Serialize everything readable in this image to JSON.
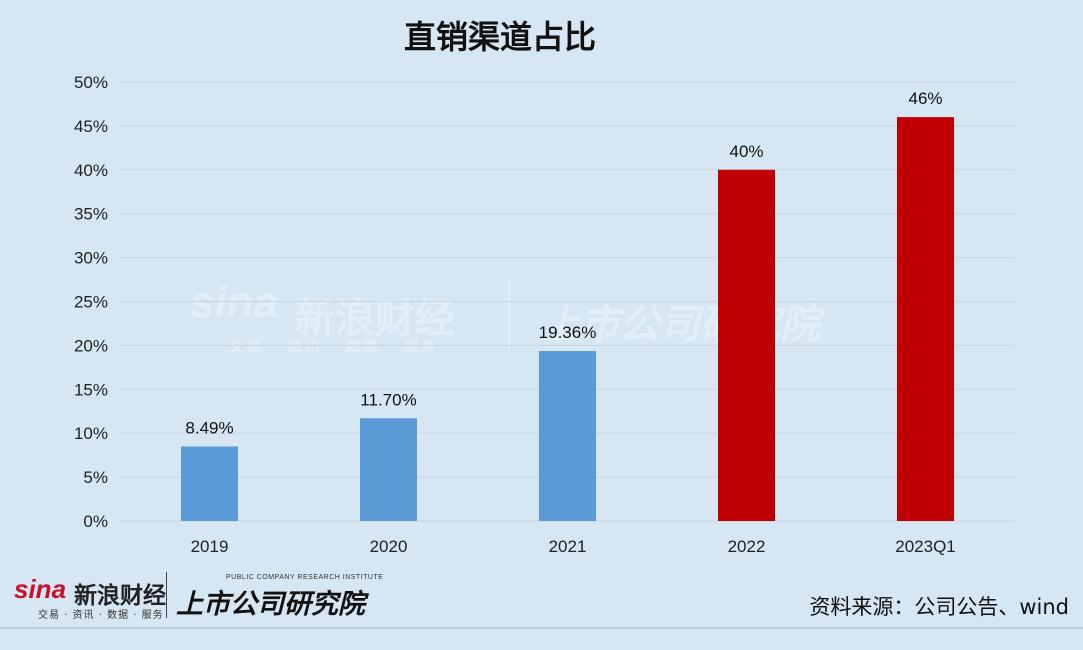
{
  "header": {
    "title": "直销渠道占比"
  },
  "watermark": {
    "brand_latin": "sina",
    "brand_cn": "新浪财经",
    "tagline": "交易 · 资讯 · 数据 · 服务",
    "institute": "上市公司研究院"
  },
  "footer": {
    "source": "资料来源：公司公告、wind",
    "logo_brand_latin": "sina",
    "logo_brand_cn": "新浪财经",
    "logo_tagline": "交易 · 资讯 · 数据 · 服务",
    "logo_institute": "上市公司研究院",
    "logo_institute_en": "PUBLIC COMPANY RESEARCH INSTITUTE"
  },
  "chart_data": {
    "type": "bar",
    "title": "直销渠道占比",
    "categories": [
      "2019",
      "2020",
      "2021",
      "2022",
      "2023Q1"
    ],
    "values": [
      8.49,
      11.7,
      19.36,
      40,
      46
    ],
    "data_labels": [
      "8.49%",
      "11.70%",
      "19.36%",
      "40%",
      "46%"
    ],
    "bar_colors": [
      "#5b9bd5",
      "#5b9bd5",
      "#5b9bd5",
      "#c00000",
      "#c00000"
    ],
    "ylim": [
      0,
      50
    ],
    "yticks": [
      0,
      5,
      10,
      15,
      20,
      25,
      30,
      35,
      40,
      45,
      50
    ],
    "ytick_labels": [
      "0%",
      "5%",
      "10%",
      "15%",
      "20%",
      "25%",
      "30%",
      "35%",
      "40%",
      "45%",
      "50%"
    ],
    "grid": true,
    "gridline_color": "#c8d4de",
    "xlabel": "",
    "ylabel": ""
  }
}
